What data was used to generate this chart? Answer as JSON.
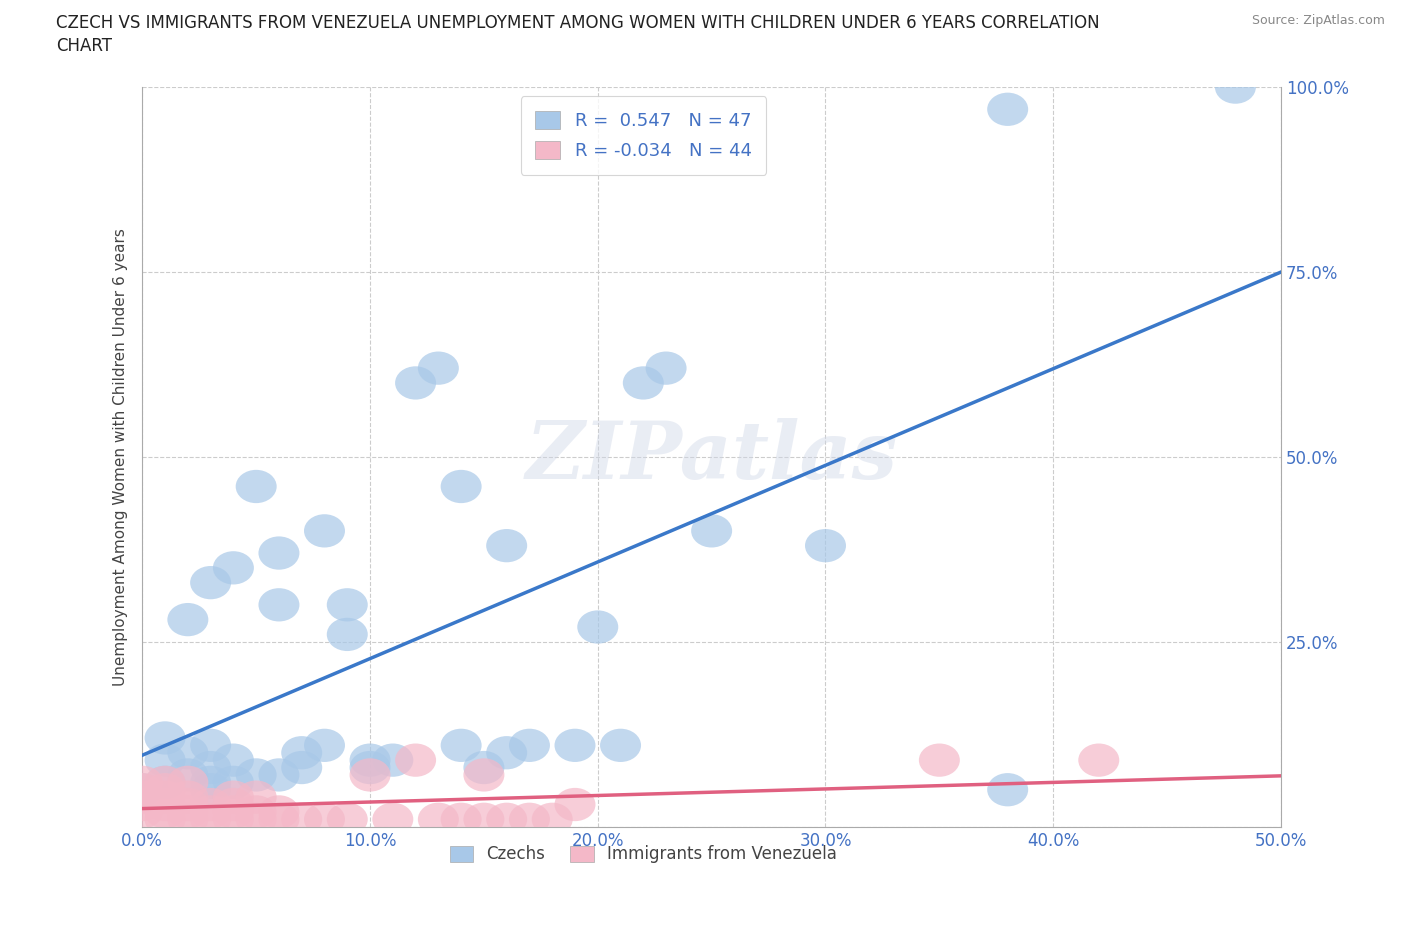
{
  "title_line1": "CZECH VS IMMIGRANTS FROM VENEZUELA UNEMPLOYMENT AMONG WOMEN WITH CHILDREN UNDER 6 YEARS CORRELATION",
  "title_line2": "CHART",
  "source": "Source: ZipAtlas.com",
  "ylabel": "Unemployment Among Women with Children Under 6 years",
  "xlim": [
    0.0,
    0.5
  ],
  "ylim": [
    0.0,
    1.0
  ],
  "xticks": [
    0.0,
    0.1,
    0.2,
    0.3,
    0.4,
    0.5
  ],
  "xtick_labels": [
    "0.0%",
    "10.0%",
    "20.0%",
    "30.0%",
    "40.0%",
    "50.0%"
  ],
  "yticks": [
    0.0,
    0.25,
    0.5,
    0.75,
    1.0
  ],
  "ytick_labels": [
    "",
    "25.0%",
    "50.0%",
    "75.0%",
    "100.0%"
  ],
  "czech_color": "#a8c8e8",
  "venezuela_color": "#f4b8c8",
  "czech_line_color": "#3a78c9",
  "venezuela_line_color": "#e06080",
  "R_czech": 0.547,
  "N_czech": 47,
  "R_venezuela": -0.034,
  "N_venezuela": 44,
  "background_color": "#ffffff",
  "grid_color": "#cccccc",
  "watermark": "ZIPatlas",
  "legend_label_czech": "Czechs",
  "legend_label_venezuela": "Immigrants from Venezuela",
  "czech_x": [
    0.0,
    0.01,
    0.01,
    0.01,
    0.02,
    0.02,
    0.02,
    0.03,
    0.03,
    0.03,
    0.03,
    0.04,
    0.04,
    0.04,
    0.05,
    0.05,
    0.06,
    0.06,
    0.06,
    0.07,
    0.07,
    0.08,
    0.08,
    0.09,
    0.09,
    0.1,
    0.1,
    0.11,
    0.12,
    0.13,
    0.14,
    0.14,
    0.15,
    0.16,
    0.17,
    0.19,
    0.2,
    0.21,
    0.22,
    0.23,
    0.25,
    0.3,
    0.03,
    0.16,
    0.38,
    0.48,
    0.38
  ],
  "czech_y": [
    0.05,
    0.06,
    0.09,
    0.12,
    0.07,
    0.1,
    0.28,
    0.06,
    0.08,
    0.11,
    0.33,
    0.06,
    0.09,
    0.35,
    0.07,
    0.46,
    0.07,
    0.3,
    0.37,
    0.08,
    0.1,
    0.11,
    0.4,
    0.26,
    0.3,
    0.08,
    0.09,
    0.09,
    0.6,
    0.62,
    0.11,
    0.46,
    0.08,
    0.38,
    0.11,
    0.11,
    0.27,
    0.11,
    0.6,
    0.62,
    0.4,
    0.38,
    0.05,
    0.1,
    0.97,
    1.0,
    0.05
  ],
  "venezuela_x": [
    0.0,
    0.0,
    0.0,
    0.0,
    0.0,
    0.01,
    0.01,
    0.01,
    0.01,
    0.01,
    0.01,
    0.02,
    0.02,
    0.02,
    0.02,
    0.02,
    0.03,
    0.03,
    0.03,
    0.04,
    0.04,
    0.04,
    0.04,
    0.05,
    0.05,
    0.05,
    0.06,
    0.06,
    0.07,
    0.08,
    0.09,
    0.1,
    0.11,
    0.12,
    0.13,
    0.14,
    0.15,
    0.15,
    0.16,
    0.17,
    0.18,
    0.19,
    0.35,
    0.42
  ],
  "venezuela_y": [
    0.02,
    0.03,
    0.04,
    0.05,
    0.06,
    0.01,
    0.02,
    0.03,
    0.04,
    0.05,
    0.06,
    0.01,
    0.02,
    0.03,
    0.04,
    0.06,
    0.01,
    0.02,
    0.03,
    0.01,
    0.02,
    0.03,
    0.04,
    0.01,
    0.02,
    0.04,
    0.01,
    0.02,
    0.01,
    0.01,
    0.01,
    0.07,
    0.01,
    0.09,
    0.01,
    0.01,
    0.01,
    0.07,
    0.01,
    0.01,
    0.01,
    0.03,
    0.09,
    0.09
  ]
}
